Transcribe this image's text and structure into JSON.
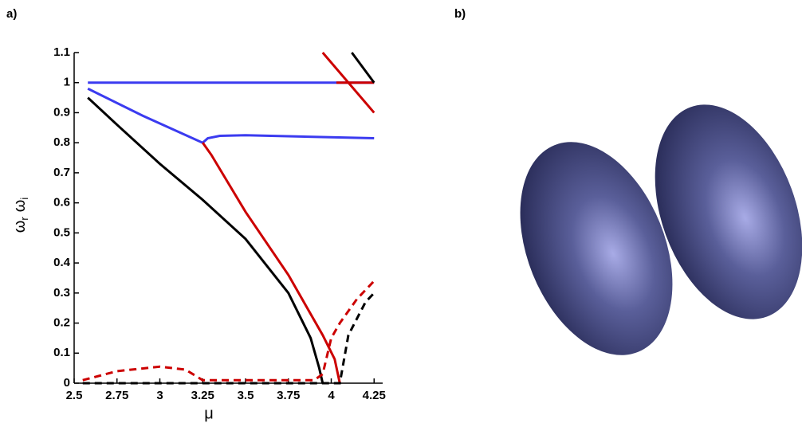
{
  "chart_data": {
    "type": "line",
    "panel_labels": [
      "a)",
      "b)"
    ],
    "xlabel": "μ",
    "ylabel_parts": [
      "ω",
      "r",
      "ω",
      "i"
    ],
    "xlim": [
      2.5,
      4.3
    ],
    "ylim": [
      0,
      1.1
    ],
    "xticks": [
      2.5,
      2.75,
      3,
      3.25,
      3.5,
      3.75,
      4,
      4.25
    ],
    "yticks": [
      0,
      0.1,
      0.2,
      0.3,
      0.4,
      0.5,
      0.6,
      0.7,
      0.8,
      0.9,
      1,
      1.1
    ],
    "series": [
      {
        "color": "#3b3bf0",
        "dashed": false,
        "x": [
          2.58,
          4.25
        ],
        "values": [
          1.0,
          1.0
        ]
      },
      {
        "color": "#3b3bf0",
        "dashed": false,
        "x": [
          2.58,
          2.9,
          3.25,
          3.28,
          3.35,
          3.5,
          4.25
        ],
        "values": [
          0.98,
          0.89,
          0.8,
          0.815,
          0.823,
          0.825,
          0.815
        ]
      },
      {
        "color": "#000000",
        "dashed": false,
        "x": [
          2.58,
          2.75,
          3.0,
          3.25,
          3.5,
          3.75,
          3.88,
          3.93,
          3.95
        ],
        "values": [
          0.95,
          0.86,
          0.73,
          0.61,
          0.48,
          0.3,
          0.15,
          0.05,
          0
        ]
      },
      {
        "color": "#cc0000",
        "dashed": false,
        "x": [
          3.25,
          3.3,
          3.5,
          3.75,
          3.95,
          4.02,
          4.05
        ],
        "values": [
          0.8,
          0.76,
          0.57,
          0.36,
          0.16,
          0.08,
          0
        ]
      },
      {
        "color": "#cc0000",
        "dashed": false,
        "x": [
          3.95,
          4.25
        ],
        "values": [
          1.1,
          0.9
        ]
      },
      {
        "color": "#cc0000",
        "dashed": false,
        "x": [
          4.03,
          4.25
        ],
        "values": [
          1.0,
          1.0
        ]
      },
      {
        "color": "#000000",
        "dashed": false,
        "x": [
          4.12,
          4.25
        ],
        "values": [
          1.1,
          1.0
        ]
      },
      {
        "color": "#cc0000",
        "dashed": true,
        "x": [
          2.55,
          2.75,
          3.0,
          3.15,
          3.25,
          3.5,
          3.9,
          3.95,
          4.0,
          4.05,
          4.15,
          4.25
        ],
        "values": [
          0.01,
          0.04,
          0.055,
          0.045,
          0.01,
          0.01,
          0.01,
          0.03,
          0.15,
          0.2,
          0.28,
          0.34
        ]
      },
      {
        "color": "#000000",
        "dashed": true,
        "x": [
          2.55,
          3.9,
          4.05,
          4.1,
          4.2,
          4.25
        ],
        "values": [
          0,
          0,
          0,
          0.16,
          0.27,
          0.3
        ]
      }
    ]
  }
}
